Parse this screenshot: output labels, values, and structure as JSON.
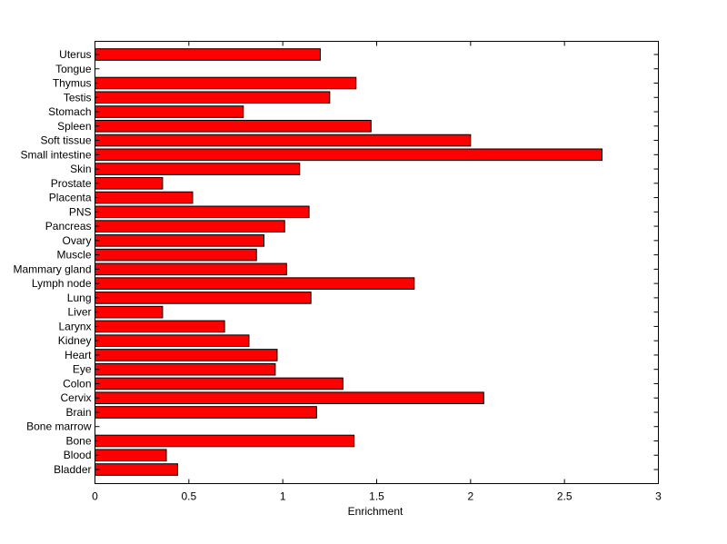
{
  "chart_data": {
    "type": "bar",
    "orientation": "horizontal",
    "xlabel": "Enrichment",
    "xlim": [
      0,
      3
    ],
    "xticks": [
      0,
      0.5,
      1,
      1.5,
      2,
      2.5,
      3
    ],
    "xtick_labels": [
      "0",
      "0.5",
      "1",
      "1.5",
      "2",
      "2.5",
      "3"
    ],
    "grid": false,
    "bar_color": "#ff0000",
    "edge_color": "#000000",
    "categories": [
      "Bladder",
      "Blood",
      "Bone",
      "Bone marrow",
      "Brain",
      "Cervix",
      "Colon",
      "Eye",
      "Heart",
      "Kidney",
      "Larynx",
      "Liver",
      "Lung",
      "Lymph node",
      "Mammary gland",
      "Muscle",
      "Ovary",
      "Pancreas",
      "PNS",
      "Placenta",
      "Prostate",
      "Skin",
      "Small intestine",
      "Soft tissue",
      "Spleen",
      "Stomach",
      "Testis",
      "Thymus",
      "Tongue",
      "Uterus"
    ],
    "values": [
      0.44,
      0.38,
      1.38,
      0,
      1.18,
      2.07,
      1.32,
      0.96,
      0.97,
      0.82,
      0.69,
      0.36,
      1.15,
      1.7,
      1.02,
      0.86,
      0.9,
      1.01,
      1.14,
      0.52,
      0.36,
      1.09,
      2.7,
      2.0,
      1.47,
      0.79,
      1.25,
      1.39,
      0,
      1.2
    ]
  }
}
